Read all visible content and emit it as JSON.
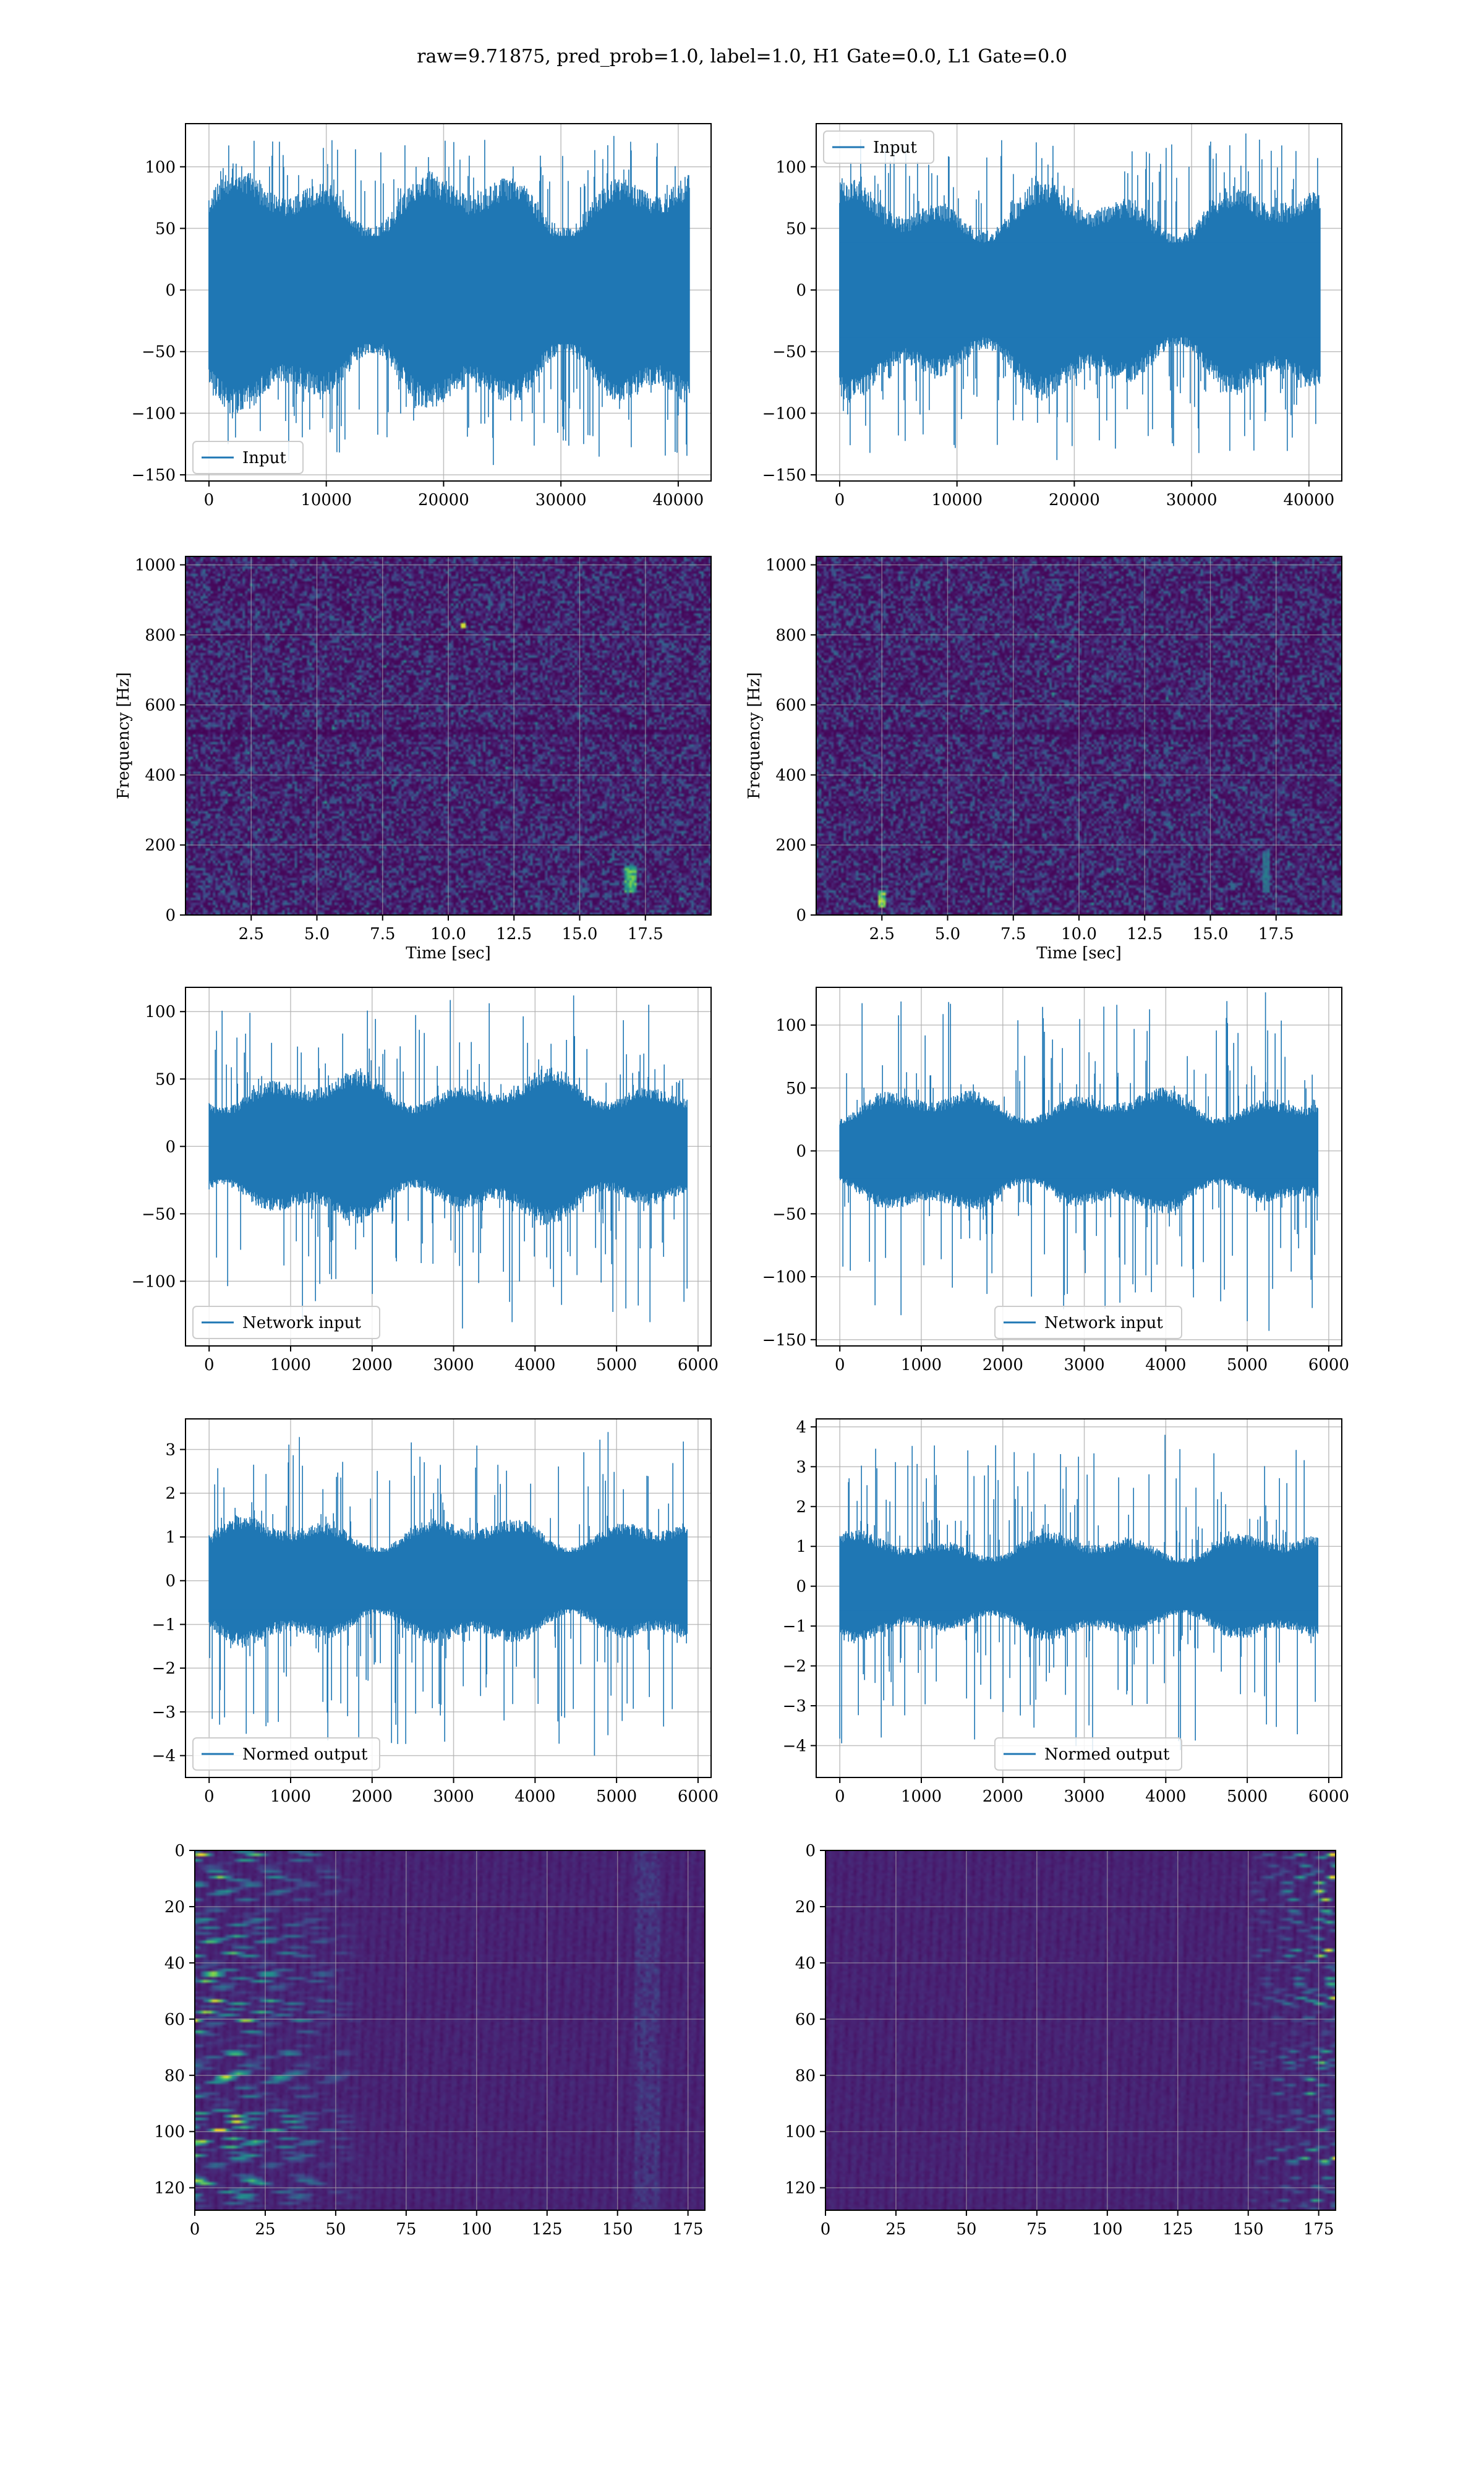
{
  "figure": {
    "title": "raw=9.71875, pred_prob=1.0, label=1.0, H1 Gate=0.0, L1 Gate=0.0",
    "line_color": "#1f77b4",
    "grid_color": "#b0b0b0"
  },
  "chart_data": [
    {
      "id": "r1c1",
      "type": "line",
      "row": 1,
      "col": 1,
      "series": [
        {
          "name": "Input"
        }
      ],
      "legend": "lower-left",
      "xlim": [
        -2000,
        42800
      ],
      "ylim": [
        -155,
        135
      ],
      "xticks": [
        0,
        10000,
        20000,
        30000,
        40000
      ],
      "xtick_labels": [
        "0",
        "10000",
        "20000",
        "30000",
        "40000"
      ],
      "yticks": [
        -150,
        -100,
        -50,
        0,
        50,
        100
      ],
      "ytick_labels": [
        "−150",
        "−100",
        "−50",
        "0",
        "50",
        "100"
      ],
      "n_points": 40960,
      "x_max": 40960,
      "core_amp": 80,
      "peak_max": 125,
      "peak_min": -142,
      "xlabel": "",
      "ylabel": "",
      "grid": true
    },
    {
      "id": "r1c2",
      "type": "line",
      "row": 1,
      "col": 2,
      "series": [
        {
          "name": "Input"
        }
      ],
      "legend": "upper-left",
      "xlim": [
        -2000,
        42800
      ],
      "ylim": [
        -155,
        135
      ],
      "xticks": [
        0,
        10000,
        20000,
        30000,
        40000
      ],
      "xtick_labels": [
        "0",
        "10000",
        "20000",
        "30000",
        "40000"
      ],
      "yticks": [
        -150,
        -100,
        -50,
        0,
        50,
        100
      ],
      "ytick_labels": [
        "−150",
        "−100",
        "−50",
        "0",
        "50",
        "100"
      ],
      "n_points": 40960,
      "x_max": 40960,
      "core_amp": 70,
      "peak_max": 127,
      "peak_min": -138,
      "xlabel": "",
      "ylabel": "",
      "grid": true
    },
    {
      "id": "r2c1",
      "type": "heatmap",
      "row": 2,
      "col": 1,
      "kind": "spectrogram",
      "xlim": [
        0,
        20
      ],
      "ylim": [
        0,
        1024
      ],
      "xticks": [
        2.5,
        5.0,
        7.5,
        10.0,
        12.5,
        15.0,
        17.5
      ],
      "xtick_labels": [
        "2.5",
        "5.0",
        "7.5",
        "10.0",
        "12.5",
        "15.0",
        "17.5"
      ],
      "yticks": [
        0,
        200,
        400,
        600,
        800,
        1000
      ],
      "ytick_labels": [
        "0",
        "200",
        "400",
        "600",
        "800",
        "1000"
      ],
      "xlabel": "Time [sec]",
      "ylabel": "Frequency [Hz]",
      "grid": true,
      "colormap": "viridis"
    },
    {
      "id": "r2c2",
      "type": "heatmap",
      "row": 2,
      "col": 2,
      "kind": "spectrogram",
      "xlim": [
        0,
        20
      ],
      "ylim": [
        0,
        1024
      ],
      "xticks": [
        2.5,
        5.0,
        7.5,
        10.0,
        12.5,
        15.0,
        17.5
      ],
      "xtick_labels": [
        "2.5",
        "5.0",
        "7.5",
        "10.0",
        "12.5",
        "15.0",
        "17.5"
      ],
      "yticks": [
        0,
        200,
        400,
        600,
        800,
        1000
      ],
      "ytick_labels": [
        "0",
        "200",
        "400",
        "600",
        "800",
        "1000"
      ],
      "xlabel": "Time [sec]",
      "ylabel": "Frequency [Hz]",
      "grid": true,
      "colormap": "viridis"
    },
    {
      "id": "r3c1",
      "type": "line",
      "row": 3,
      "col": 1,
      "series": [
        {
          "name": "Network input"
        }
      ],
      "legend": "lower-left",
      "xlim": [
        -290,
        6160
      ],
      "ylim": [
        -148,
        118
      ],
      "xticks": [
        0,
        1000,
        2000,
        3000,
        4000,
        5000,
        6000
      ],
      "xtick_labels": [
        "0",
        "1000",
        "2000",
        "3000",
        "4000",
        "5000",
        "6000"
      ],
      "yticks": [
        -100,
        -50,
        0,
        50,
        100
      ],
      "ytick_labels": [
        "−100",
        "−50",
        "0",
        "50",
        "100"
      ],
      "n_points": 5866,
      "x_max": 5866,
      "core_amp": 45,
      "peak_max": 112,
      "peak_min": -135,
      "xlabel": "",
      "ylabel": "",
      "grid": true
    },
    {
      "id": "r3c2",
      "type": "line",
      "row": 3,
      "col": 2,
      "series": [
        {
          "name": "Network input"
        }
      ],
      "legend": "lower-center",
      "xlim": [
        -290,
        6160
      ],
      "ylim": [
        -155,
        130
      ],
      "xticks": [
        0,
        1000,
        2000,
        3000,
        4000,
        5000,
        6000
      ],
      "xtick_labels": [
        "0",
        "1000",
        "2000",
        "3000",
        "4000",
        "5000",
        "6000"
      ],
      "yticks": [
        -150,
        -100,
        -50,
        0,
        50,
        100
      ],
      "ytick_labels": [
        "−150",
        "−100",
        "−50",
        "0",
        "50",
        "100"
      ],
      "n_points": 5866,
      "x_max": 5866,
      "core_amp": 40,
      "peak_max": 126,
      "peak_min": -143,
      "xlabel": "",
      "ylabel": "",
      "grid": true
    },
    {
      "id": "r4c1",
      "type": "line",
      "row": 4,
      "col": 1,
      "series": [
        {
          "name": "Normed output"
        }
      ],
      "legend": "lower-left",
      "xlim": [
        -290,
        6160
      ],
      "ylim": [
        -4.5,
        3.7
      ],
      "xticks": [
        0,
        1000,
        2000,
        3000,
        4000,
        5000,
        6000
      ],
      "xtick_labels": [
        "0",
        "1000",
        "2000",
        "3000",
        "4000",
        "5000",
        "6000"
      ],
      "yticks": [
        -4,
        -3,
        -2,
        -1,
        0,
        1,
        2,
        3
      ],
      "ytick_labels": [
        "−4",
        "−3",
        "−2",
        "−1",
        "0",
        "1",
        "2",
        "3"
      ],
      "n_points": 5866,
      "x_max": 5866,
      "core_amp": 1.2,
      "peak_max": 3.4,
      "peak_min": -4.0,
      "xlabel": "",
      "ylabel": "",
      "grid": true
    },
    {
      "id": "r4c2",
      "type": "line",
      "row": 4,
      "col": 2,
      "series": [
        {
          "name": "Normed output"
        }
      ],
      "legend": "lower-center",
      "xlim": [
        -290,
        6160
      ],
      "ylim": [
        -4.8,
        4.2
      ],
      "xticks": [
        0,
        1000,
        2000,
        3000,
        4000,
        5000,
        6000
      ],
      "xtick_labels": [
        "0",
        "1000",
        "2000",
        "3000",
        "4000",
        "5000",
        "6000"
      ],
      "yticks": [
        -4,
        -3,
        -2,
        -1,
        0,
        1,
        2,
        3,
        4
      ],
      "ytick_labels": [
        "−4",
        "−3",
        "−2",
        "−1",
        "0",
        "1",
        "2",
        "3",
        "4"
      ],
      "n_points": 5866,
      "x_max": 5866,
      "core_amp": 1.1,
      "peak_max": 3.8,
      "peak_min": -4.3,
      "xlabel": "",
      "ylabel": "",
      "grid": true
    },
    {
      "id": "r5c1",
      "type": "heatmap",
      "row": 5,
      "col": 1,
      "kind": "feature-map",
      "xlim": [
        0,
        181
      ],
      "ylim": [
        128,
        0
      ],
      "xticks": [
        0,
        25,
        50,
        75,
        100,
        125,
        150,
        175
      ],
      "xtick_labels": [
        "0",
        "25",
        "50",
        "75",
        "100",
        "125",
        "150",
        "175"
      ],
      "yticks": [
        0,
        20,
        40,
        60,
        80,
        100,
        120
      ],
      "ytick_labels": [
        "0",
        "20",
        "40",
        "60",
        "80",
        "100",
        "120"
      ],
      "xlabel": "",
      "ylabel": "",
      "grid": true,
      "colormap": "viridis",
      "active_columns": [
        0,
        60
      ]
    },
    {
      "id": "r5c2",
      "type": "heatmap",
      "row": 5,
      "col": 2,
      "kind": "feature-map",
      "xlim": [
        0,
        181
      ],
      "ylim": [
        128,
        0
      ],
      "xticks": [
        0,
        25,
        50,
        75,
        100,
        125,
        150,
        175
      ],
      "xtick_labels": [
        "0",
        "25",
        "50",
        "75",
        "100",
        "125",
        "150",
        "175"
      ],
      "yticks": [
        0,
        20,
        40,
        60,
        80,
        100,
        120
      ],
      "ytick_labels": [
        "0",
        "20",
        "40",
        "60",
        "80",
        "100",
        "120"
      ],
      "xlabel": "",
      "ylabel": "",
      "grid": true,
      "colormap": "viridis",
      "active_columns": [
        145,
        181
      ]
    }
  ]
}
